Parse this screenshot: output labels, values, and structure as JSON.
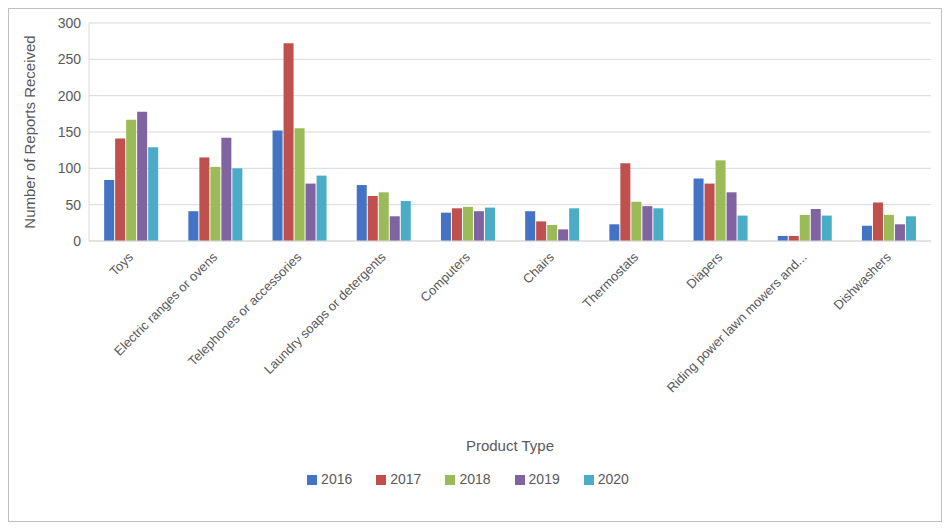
{
  "chart_data": {
    "type": "bar",
    "x_label": "Product Type",
    "y_label": "Number of Reports Received",
    "categories": [
      "Toys",
      "Electric ranges or ovens",
      "Telephones or accessories",
      "Laundry soaps or detergents",
      "Computers",
      "Chairs",
      "Thermostats",
      "Diapers",
      "Riding power lawn mowers and...",
      "Dishwashers"
    ],
    "series": [
      {
        "name": "2016",
        "color": "#4472c4",
        "values": [
          84,
          41,
          152,
          77,
          39,
          41,
          23,
          86,
          7,
          21
        ]
      },
      {
        "name": "2017",
        "color": "#c0504d",
        "values": [
          141,
          115,
          272,
          62,
          45,
          27,
          107,
          79,
          7,
          53
        ]
      },
      {
        "name": "2018",
        "color": "#9bbb59",
        "values": [
          167,
          102,
          155,
          67,
          47,
          22,
          54,
          111,
          36,
          36
        ]
      },
      {
        "name": "2019",
        "color": "#8064a2",
        "values": [
          178,
          142,
          79,
          34,
          41,
          16,
          48,
          67,
          44,
          23
        ]
      },
      {
        "name": "2020",
        "color": "#4bacc6",
        "values": [
          129,
          100,
          90,
          55,
          46,
          45,
          45,
          35,
          35,
          34
        ]
      }
    ],
    "ylim": [
      0,
      300
    ],
    "yticks": [
      0,
      50,
      100,
      150,
      200,
      250,
      300
    ],
    "grid": true,
    "legend": "bottom"
  }
}
